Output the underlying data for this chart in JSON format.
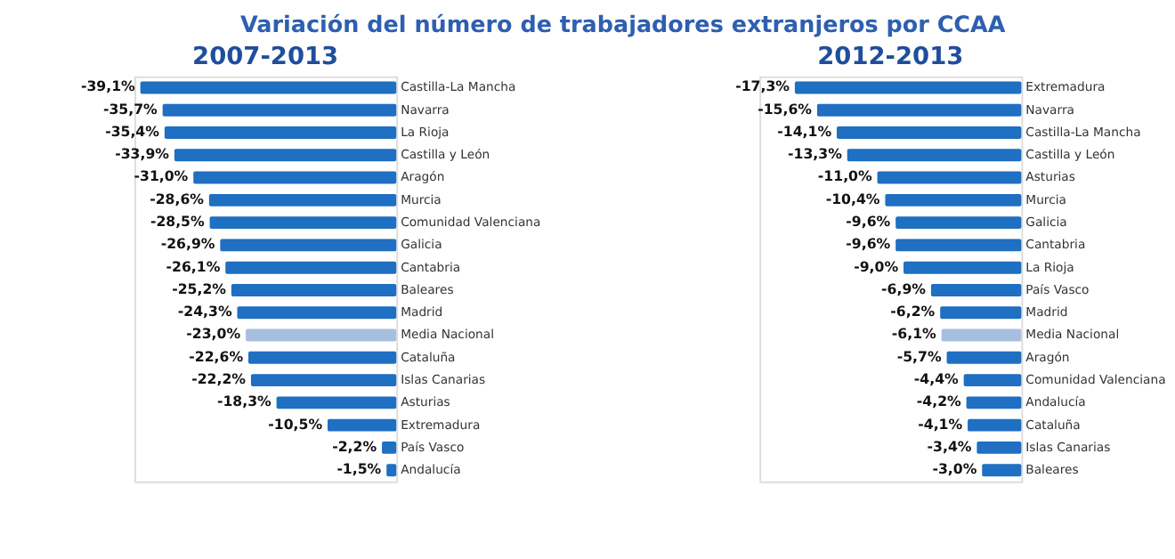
{
  "chart_data": [
    {
      "type": "bar",
      "orientation": "horizontal",
      "title": "2007-2013",
      "annotations": [
        "Variación del número de trabajadores extranjeros por CCAA"
      ],
      "categories": [
        "Castilla-La Mancha",
        "Navarra",
        "La Rioja",
        "Castilla y León",
        "Aragón",
        "Murcia",
        "Comunidad Valenciana",
        "Galicia",
        "Cantabria",
        "Baleares",
        "Madrid",
        "Media Nacional",
        "Cataluña",
        "Islas Canarias",
        "Asturias",
        "Extremadura",
        "País Vasco",
        "Andalucía"
      ],
      "values": [
        -39.1,
        -35.7,
        -35.4,
        -33.9,
        -31.0,
        -28.6,
        -28.5,
        -26.9,
        -26.1,
        -25.2,
        -24.3,
        -23.0,
        -22.6,
        -22.2,
        -18.3,
        -10.5,
        -2.2,
        -1.5
      ],
      "value_labels": [
        "-39,1%",
        "-35,7%",
        "-35,4%",
        "-33,9%",
        "-31,0%",
        "-28,6%",
        "-28,5%",
        "-26,9%",
        "-26,1%",
        "-25,2%",
        "-24,3%",
        "-23,0%",
        "-22,6%",
        "-22,2%",
        "-18,3%",
        "-10,5%",
        "-2,2%",
        "-1,5%"
      ],
      "colors": [
        "#1f6fc2",
        "#1f6fc2",
        "#1f6fc2",
        "#1f6fc2",
        "#1f6fc2",
        "#1f6fc2",
        "#1f6fc2",
        "#1f6fc2",
        "#1f6fc2",
        "#1f6fc2",
        "#1f6fc2",
        "#a7bfdf",
        "#1f6fc2",
        "#1f6fc2",
        "#1f6fc2",
        "#1f6fc2",
        "#1f6fc2",
        "#1f6fc2"
      ],
      "xlim": [
        -40,
        0
      ]
    },
    {
      "type": "bar",
      "orientation": "horizontal",
      "title": "2012-2013",
      "categories": [
        "Extremadura",
        "Navarra",
        "Castilla-La Mancha",
        "Castilla y León",
        "Asturias",
        "Murcia",
        "Galicia",
        "Cantabria",
        "La Rioja",
        "País Vasco",
        "Madrid",
        "Media Nacional",
        "Aragón",
        "Comunidad Valenciana",
        "Andalucía",
        "Cataluña",
        "Islas Canarias",
        "Baleares"
      ],
      "values": [
        -17.3,
        -15.6,
        -14.1,
        -13.3,
        -11.0,
        -10.4,
        -9.6,
        -9.6,
        -9.0,
        -6.9,
        -6.2,
        -6.1,
        -5.7,
        -4.4,
        -4.2,
        -4.1,
        -3.4,
        -3.0
      ],
      "value_labels": [
        "-17,3%",
        "-15,6%",
        "-14,1%",
        "-13,3%",
        "-11,0%",
        "-10,4%",
        "-9,6%",
        "-9,6%",
        "-9,0%",
        "-6,9%",
        "-6,2%",
        "-6,1%",
        "-5,7%",
        "-4,4%",
        "-4,2%",
        "-4,1%",
        "-3,4%",
        "-3,0%"
      ],
      "colors": [
        "#1f6fc2",
        "#1f6fc2",
        "#1f6fc2",
        "#1f6fc2",
        "#1f6fc2",
        "#1f6fc2",
        "#1f6fc2",
        "#1f6fc2",
        "#1f6fc2",
        "#1f6fc2",
        "#1f6fc2",
        "#a7bfdf",
        "#1f6fc2",
        "#1f6fc2",
        "#1f6fc2",
        "#1f6fc2",
        "#1f6fc2",
        "#1f6fc2"
      ],
      "xlim": [
        -20,
        0
      ]
    }
  ]
}
